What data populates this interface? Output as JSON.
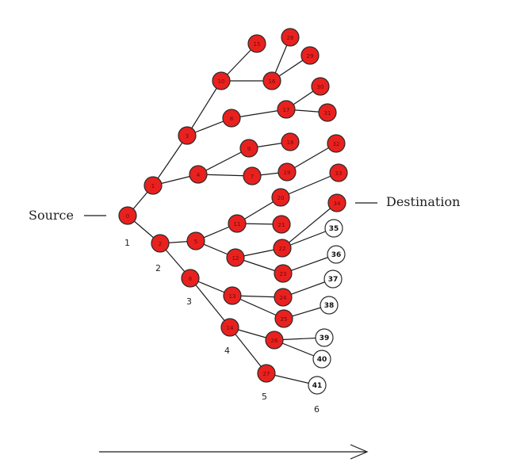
{
  "labels": {
    "source": "Source",
    "destination": "Destination"
  },
  "levels": [
    "1",
    "2",
    "3",
    "4",
    "5",
    "6"
  ],
  "colors": {
    "active_node": "#e8211f",
    "inactive_node": "#ffffff",
    "edge": "#1a1a1a"
  },
  "nodes": [
    {
      "id": "n0",
      "label": "0",
      "state": "active"
    },
    {
      "id": "n1",
      "label": "1",
      "state": "active"
    },
    {
      "id": "n2",
      "label": "2",
      "state": "active"
    },
    {
      "id": "n3",
      "label": "3",
      "state": "active"
    },
    {
      "id": "n4",
      "label": "4",
      "state": "active"
    },
    {
      "id": "n5",
      "label": "5",
      "state": "active"
    },
    {
      "id": "n6",
      "label": "6",
      "state": "active"
    },
    {
      "id": "n7",
      "label": "7",
      "state": "active"
    },
    {
      "id": "n8",
      "label": "8",
      "state": "active"
    },
    {
      "id": "n9",
      "label": "9",
      "state": "active"
    },
    {
      "id": "n10",
      "label": "10",
      "state": "active"
    },
    {
      "id": "n11",
      "label": "11",
      "state": "active"
    },
    {
      "id": "n12",
      "label": "12",
      "state": "active"
    },
    {
      "id": "n13",
      "label": "13",
      "state": "active"
    },
    {
      "id": "n14",
      "label": "14",
      "state": "active"
    },
    {
      "id": "n15",
      "label": "15",
      "state": "active"
    },
    {
      "id": "n16",
      "label": "16",
      "state": "active"
    },
    {
      "id": "n17",
      "label": "17",
      "state": "active"
    },
    {
      "id": "n18",
      "label": "18",
      "state": "active"
    },
    {
      "id": "n19",
      "label": "19",
      "state": "active"
    },
    {
      "id": "n20",
      "label": "20",
      "state": "active"
    },
    {
      "id": "n21",
      "label": "21",
      "state": "active"
    },
    {
      "id": "n22",
      "label": "22",
      "state": "active"
    },
    {
      "id": "n23",
      "label": "23",
      "state": "active"
    },
    {
      "id": "n24",
      "label": "24",
      "state": "active"
    },
    {
      "id": "n25",
      "label": "25",
      "state": "active"
    },
    {
      "id": "n26",
      "label": "26",
      "state": "active"
    },
    {
      "id": "n27",
      "label": "27",
      "state": "active"
    },
    {
      "id": "n28",
      "label": "28",
      "state": "active"
    },
    {
      "id": "n29",
      "label": "29",
      "state": "active"
    },
    {
      "id": "n30",
      "label": "30",
      "state": "active"
    },
    {
      "id": "n31",
      "label": "31",
      "state": "active"
    },
    {
      "id": "n32",
      "label": "32",
      "state": "active"
    },
    {
      "id": "n33",
      "label": "33",
      "state": "active"
    },
    {
      "id": "n34",
      "label": "34",
      "state": "active"
    },
    {
      "id": "n35",
      "label": "35",
      "state": "inactive"
    },
    {
      "id": "n36",
      "label": "36",
      "state": "inactive"
    },
    {
      "id": "n37",
      "label": "37",
      "state": "inactive"
    },
    {
      "id": "n38",
      "label": "38",
      "state": "inactive"
    },
    {
      "id": "n39",
      "label": "39",
      "state": "inactive"
    },
    {
      "id": "n40",
      "label": "40",
      "state": "inactive"
    },
    {
      "id": "n41",
      "label": "41",
      "state": "inactive"
    }
  ],
  "edges": [
    [
      "n0",
      "n1"
    ],
    [
      "n0",
      "n2"
    ],
    [
      "n1",
      "n3"
    ],
    [
      "n1",
      "n4"
    ],
    [
      "n2",
      "n5"
    ],
    [
      "n2",
      "n6"
    ],
    [
      "n3",
      "n10"
    ],
    [
      "n3",
      "n8"
    ],
    [
      "n4",
      "n9"
    ],
    [
      "n4",
      "n7"
    ],
    [
      "n5",
      "n11"
    ],
    [
      "n5",
      "n12"
    ],
    [
      "n6",
      "n13"
    ],
    [
      "n6",
      "n14"
    ],
    [
      "n10",
      "n15"
    ],
    [
      "n10",
      "n16"
    ],
    [
      "n8",
      "n17"
    ],
    [
      "n9",
      "n18"
    ],
    [
      "n7",
      "n19"
    ],
    [
      "n11",
      "n20"
    ],
    [
      "n11",
      "n21"
    ],
    [
      "n12",
      "n22"
    ],
    [
      "n12",
      "n23"
    ],
    [
      "n13",
      "n24"
    ],
    [
      "n13",
      "n25"
    ],
    [
      "n14",
      "n26"
    ],
    [
      "n14",
      "n27"
    ],
    [
      "n16",
      "n28"
    ],
    [
      "n16",
      "n29"
    ],
    [
      "n17",
      "n30"
    ],
    [
      "n17",
      "n31"
    ],
    [
      "n19",
      "n32"
    ],
    [
      "n20",
      "n33"
    ],
    [
      "n22",
      "n34"
    ],
    [
      "n22",
      "n35"
    ],
    [
      "n23",
      "n36"
    ],
    [
      "n24",
      "n37"
    ],
    [
      "n25",
      "n38"
    ],
    [
      "n26",
      "n39"
    ],
    [
      "n26",
      "n40"
    ],
    [
      "n27",
      "n41"
    ]
  ]
}
